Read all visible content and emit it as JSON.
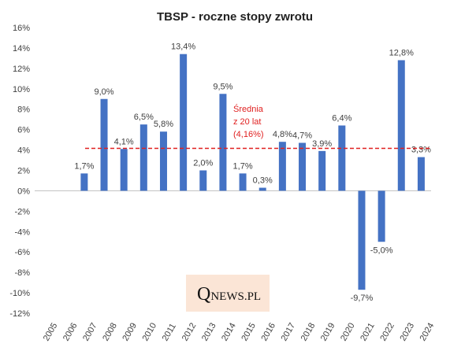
{
  "chart_data": {
    "type": "bar",
    "title": "TBSP - roczne stopy zwrotu",
    "categories": [
      "2005",
      "2006",
      "2007",
      "2008",
      "2009",
      "2010",
      "2011",
      "2012",
      "2013",
      "2014",
      "2015",
      "2016",
      "2017",
      "2018",
      "2019",
      "2020",
      "2021",
      "2022",
      "2023",
      "2024"
    ],
    "values": [
      null,
      null,
      1.7,
      9.0,
      4.1,
      6.5,
      5.8,
      13.4,
      2.0,
      9.5,
      1.7,
      0.3,
      4.8,
      4.7,
      3.9,
      6.4,
      -9.7,
      -5.0,
      12.8,
      3.3
    ],
    "data_labels": [
      "",
      "",
      "1,7%",
      "9,0%",
      "4,1%",
      "6,5%",
      "5,8%",
      "13,4%",
      "2,0%",
      "9,5%",
      "1,7%",
      "0,3%",
      "4,8%",
      "4,7%",
      "3,9%",
      "6,4%",
      "-9,7%",
      "-5,0%",
      "12,8%",
      "3,3%"
    ],
    "yticks": [
      16,
      14,
      12,
      10,
      8,
      6,
      4,
      2,
      0,
      -2,
      -4,
      -6,
      -8,
      -10,
      -12
    ],
    "ytick_labels": [
      "16%",
      "14%",
      "12%",
      "10%",
      "8%",
      "6%",
      "4%",
      "2%",
      "0%",
      "-2%",
      "-4%",
      "-6%",
      "-8%",
      "-10%",
      "-12%"
    ],
    "ylim": [
      -12,
      16
    ],
    "grid": false,
    "bar_color": "#4472c4",
    "average": {
      "value": 4.16,
      "label_lines": [
        "Średnia",
        "z 20 lat",
        "(4,16%)"
      ],
      "color": "#e02020",
      "style": "dashed"
    }
  },
  "watermark": {
    "text_first": "Q",
    "text_rest": "NEWS.PL",
    "background": "#fbe5d6"
  }
}
